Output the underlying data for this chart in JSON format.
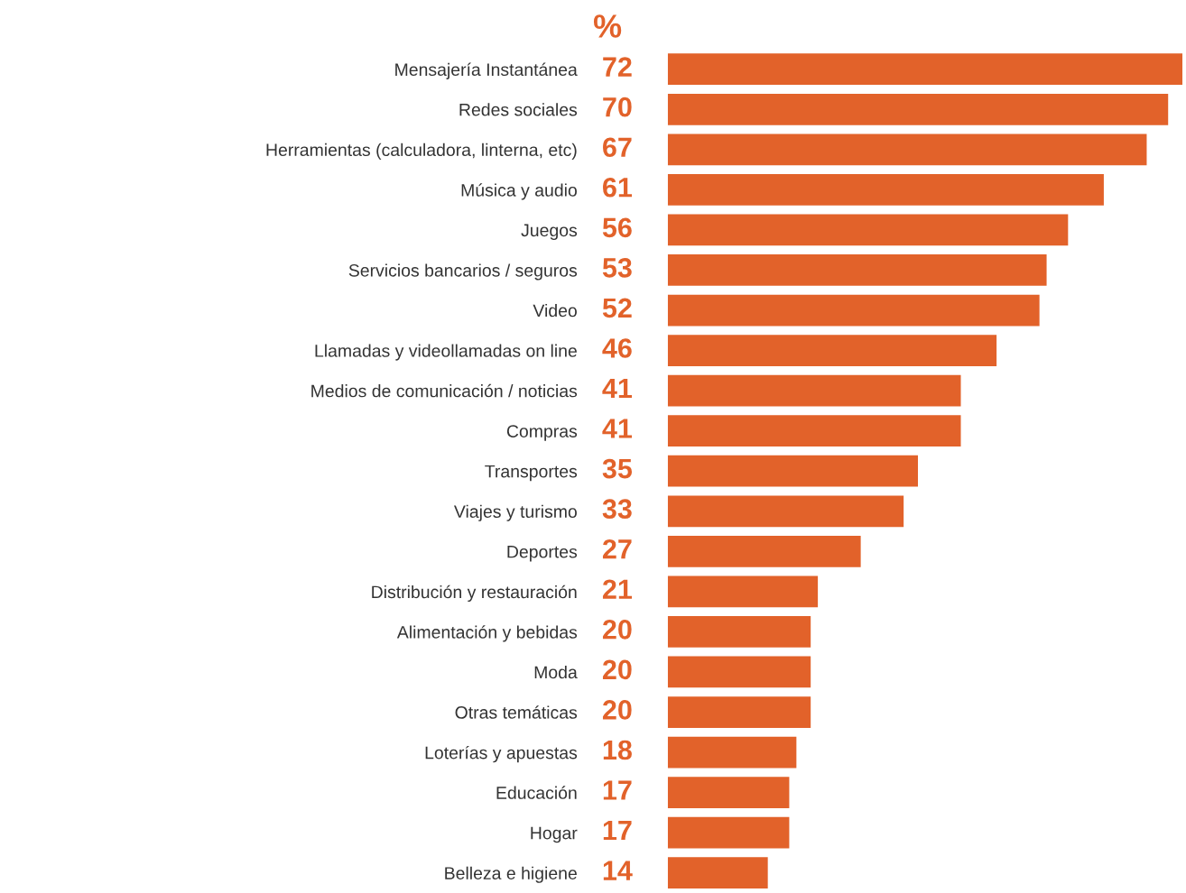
{
  "chart_data": {
    "type": "bar",
    "orientation": "horizontal",
    "title": "%",
    "categories": [
      "Mensajería Instantánea",
      "Redes sociales",
      "Herramientas (calculadora, linterna, etc)",
      "Música y audio",
      "Juegos",
      "Servicios bancarios / seguros",
      "Video",
      "Llamadas y videollamadas on line",
      "Medios de comunicación / noticias",
      "Compras",
      "Transportes",
      "Viajes y turismo",
      "Deportes",
      "Distribución y restauración",
      "Alimentación y bebidas",
      "Moda",
      "Otras temáticas",
      "Loterías y apuestas",
      "Educación",
      "Hogar",
      "Belleza e higiene"
    ],
    "values": [
      72,
      70,
      67,
      61,
      56,
      53,
      52,
      46,
      41,
      41,
      35,
      33,
      27,
      21,
      20,
      20,
      20,
      18,
      17,
      17,
      14
    ],
    "color": "#e2622a",
    "data_labels": true
  }
}
